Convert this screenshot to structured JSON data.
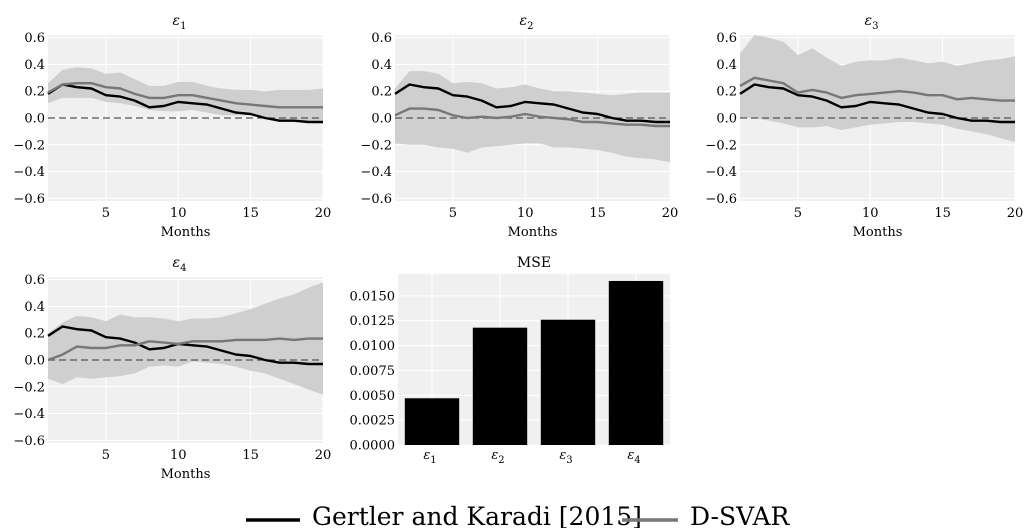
{
  "colors": {
    "plot_background": "#f0f0f0",
    "grid": "#ffffff",
    "band": "#cfcfcf",
    "gk_line": "#000000",
    "dsvar_line": "#777777",
    "zero_line": "#555555",
    "bar": "#000000"
  },
  "legend": {
    "gk_label": "Gertler and Karadi [2015]",
    "dsvar_label": "D-SVAR"
  },
  "chart_data": [
    {
      "type": "line",
      "title": "ε1",
      "title_base": "ε",
      "title_sub": "1",
      "xlabel": "Months",
      "xlim": [
        1,
        20
      ],
      "ylim": [
        -0.62,
        0.62
      ],
      "xticks": [
        5,
        10,
        15,
        20
      ],
      "yticks": [
        -0.6,
        -0.4,
        -0.2,
        0.0,
        0.2,
        0.4,
        0.6
      ],
      "ytick_labels": [
        "−0.6",
        "−0.4",
        "−0.2",
        "0.0",
        "0.2",
        "0.4",
        "0.6"
      ],
      "grid": true,
      "x": [
        1,
        2,
        3,
        4,
        5,
        6,
        7,
        8,
        9,
        10,
        11,
        12,
        13,
        14,
        15,
        16,
        17,
        18,
        19,
        20
      ],
      "band_upper": [
        0.26,
        0.36,
        0.38,
        0.37,
        0.33,
        0.34,
        0.29,
        0.24,
        0.24,
        0.27,
        0.27,
        0.24,
        0.22,
        0.21,
        0.21,
        0.2,
        0.21,
        0.21,
        0.21,
        0.22
      ],
      "band_lower": [
        0.11,
        0.15,
        0.15,
        0.15,
        0.12,
        0.11,
        0.09,
        0.06,
        0.05,
        0.05,
        0.06,
        0.04,
        0.02,
        0.02,
        0.02,
        0.0,
        -0.02,
        -0.03,
        -0.02,
        -0.02
      ],
      "series": [
        {
          "name": "Gertler and Karadi [2015]",
          "values": [
            0.18,
            0.25,
            0.23,
            0.22,
            0.17,
            0.16,
            0.13,
            0.08,
            0.09,
            0.12,
            0.11,
            0.1,
            0.07,
            0.04,
            0.03,
            0.0,
            -0.02,
            -0.02,
            -0.03,
            -0.03
          ]
        },
        {
          "name": "D-SVAR",
          "values": [
            0.19,
            0.25,
            0.26,
            0.26,
            0.23,
            0.22,
            0.18,
            0.15,
            0.15,
            0.17,
            0.17,
            0.15,
            0.13,
            0.11,
            0.1,
            0.09,
            0.08,
            0.08,
            0.08,
            0.08
          ]
        }
      ]
    },
    {
      "type": "line",
      "title": "ε2",
      "title_base": "ε",
      "title_sub": "2",
      "xlabel": "Months",
      "xlim": [
        1,
        20
      ],
      "ylim": [
        -0.62,
        0.62
      ],
      "xticks": [
        5,
        10,
        15,
        20
      ],
      "yticks": [
        -0.6,
        -0.4,
        -0.2,
        0.0,
        0.2,
        0.4,
        0.6
      ],
      "ytick_labels": [
        "−0.6",
        "−0.4",
        "−0.2",
        "0.0",
        "0.2",
        "0.4",
        "0.6"
      ],
      "grid": true,
      "x": [
        1,
        2,
        3,
        4,
        5,
        6,
        7,
        8,
        9,
        10,
        11,
        12,
        13,
        14,
        15,
        16,
        17,
        18,
        19,
        20
      ],
      "band_upper": [
        0.22,
        0.35,
        0.35,
        0.33,
        0.26,
        0.27,
        0.26,
        0.22,
        0.23,
        0.25,
        0.22,
        0.2,
        0.2,
        0.19,
        0.18,
        0.17,
        0.18,
        0.19,
        0.19,
        0.19
      ],
      "band_lower": [
        -0.19,
        -0.2,
        -0.2,
        -0.22,
        -0.23,
        -0.26,
        -0.22,
        -0.21,
        -0.2,
        -0.19,
        -0.19,
        -0.22,
        -0.22,
        -0.23,
        -0.24,
        -0.26,
        -0.29,
        -0.3,
        -0.31,
        -0.33
      ],
      "series": [
        {
          "name": "Gertler and Karadi [2015]",
          "values": [
            0.18,
            0.25,
            0.23,
            0.22,
            0.17,
            0.16,
            0.13,
            0.08,
            0.09,
            0.12,
            0.11,
            0.1,
            0.07,
            0.04,
            0.03,
            0.0,
            -0.02,
            -0.02,
            -0.03,
            -0.03
          ]
        },
        {
          "name": "D-SVAR",
          "values": [
            0.02,
            0.07,
            0.07,
            0.06,
            0.02,
            0.0,
            0.01,
            0.0,
            0.01,
            0.03,
            0.01,
            0.0,
            -0.01,
            -0.03,
            -0.03,
            -0.04,
            -0.05,
            -0.05,
            -0.06,
            -0.06
          ]
        }
      ]
    },
    {
      "type": "line",
      "title": "ε3",
      "title_base": "ε",
      "title_sub": "3",
      "xlabel": "Months",
      "xlim": [
        1,
        20
      ],
      "ylim": [
        -0.62,
        0.62
      ],
      "xticks": [
        5,
        10,
        15,
        20
      ],
      "yticks": [
        -0.6,
        -0.4,
        -0.2,
        0.0,
        0.2,
        0.4,
        0.6
      ],
      "ytick_labels": [
        "−0.6",
        "−0.4",
        "−0.2",
        "0.0",
        "0.2",
        "0.4",
        "0.6"
      ],
      "grid": true,
      "x": [
        1,
        2,
        3,
        4,
        5,
        6,
        7,
        8,
        9,
        10,
        11,
        12,
        13,
        14,
        15,
        16,
        17,
        18,
        19,
        20
      ],
      "band_upper": [
        0.48,
        0.62,
        0.6,
        0.57,
        0.47,
        0.52,
        0.45,
        0.39,
        0.42,
        0.43,
        0.43,
        0.45,
        0.43,
        0.41,
        0.42,
        0.39,
        0.41,
        0.43,
        0.44,
        0.46
      ],
      "band_lower": [
        0.0,
        0.0,
        -0.02,
        -0.04,
        -0.07,
        -0.07,
        -0.06,
        -0.09,
        -0.07,
        -0.05,
        -0.04,
        -0.03,
        -0.03,
        -0.04,
        -0.05,
        -0.08,
        -0.1,
        -0.12,
        -0.15,
        -0.18
      ],
      "series": [
        {
          "name": "Gertler and Karadi [2015]",
          "values": [
            0.18,
            0.25,
            0.23,
            0.22,
            0.17,
            0.16,
            0.13,
            0.08,
            0.09,
            0.12,
            0.11,
            0.1,
            0.07,
            0.04,
            0.03,
            0.0,
            -0.02,
            -0.02,
            -0.03,
            -0.03
          ]
        },
        {
          "name": "D-SVAR",
          "values": [
            0.24,
            0.3,
            0.28,
            0.26,
            0.19,
            0.21,
            0.19,
            0.15,
            0.17,
            0.18,
            0.19,
            0.2,
            0.19,
            0.17,
            0.17,
            0.14,
            0.15,
            0.14,
            0.13,
            0.13
          ]
        }
      ]
    },
    {
      "type": "line",
      "title": "ε4",
      "title_base": "ε",
      "title_sub": "4",
      "xlabel": "Months",
      "xlim": [
        1,
        20
      ],
      "ylim": [
        -0.62,
        0.62
      ],
      "xticks": [
        5,
        10,
        15,
        20
      ],
      "yticks": [
        -0.6,
        -0.4,
        -0.2,
        0.0,
        0.2,
        0.4,
        0.6
      ],
      "ytick_labels": [
        "−0.6",
        "−0.4",
        "−0.2",
        "0.0",
        "0.2",
        "0.4",
        "0.6"
      ],
      "grid": true,
      "x": [
        1,
        2,
        3,
        4,
        5,
        6,
        7,
        8,
        9,
        10,
        11,
        12,
        13,
        14,
        15,
        16,
        17,
        18,
        19,
        20
      ],
      "band_upper": [
        0.2,
        0.28,
        0.33,
        0.32,
        0.29,
        0.34,
        0.32,
        0.32,
        0.31,
        0.29,
        0.31,
        0.31,
        0.32,
        0.35,
        0.38,
        0.42,
        0.46,
        0.49,
        0.54,
        0.58
      ],
      "band_lower": [
        -0.14,
        -0.18,
        -0.13,
        -0.14,
        -0.13,
        -0.12,
        -0.1,
        -0.05,
        -0.04,
        -0.05,
        -0.01,
        -0.02,
        -0.03,
        -0.05,
        -0.08,
        -0.1,
        -0.14,
        -0.18,
        -0.22,
        -0.26
      ],
      "series": [
        {
          "name": "Gertler and Karadi [2015]",
          "values": [
            0.18,
            0.25,
            0.23,
            0.22,
            0.17,
            0.16,
            0.13,
            0.08,
            0.09,
            0.12,
            0.11,
            0.1,
            0.07,
            0.04,
            0.03,
            0.0,
            -0.02,
            -0.02,
            -0.03,
            -0.03
          ]
        },
        {
          "name": "D-SVAR",
          "values": [
            0.0,
            0.04,
            0.1,
            0.09,
            0.09,
            0.11,
            0.11,
            0.14,
            0.13,
            0.12,
            0.14,
            0.14,
            0.14,
            0.15,
            0.15,
            0.15,
            0.16,
            0.15,
            0.16,
            0.16
          ]
        }
      ]
    },
    {
      "type": "bar",
      "title": "MSE",
      "categories": [
        {
          "base": "ε",
          "sub": "1"
        },
        {
          "base": "ε",
          "sub": "2"
        },
        {
          "base": "ε",
          "sub": "3"
        },
        {
          "base": "ε",
          "sub": "4"
        }
      ],
      "values": [
        0.0047,
        0.0118,
        0.0126,
        0.0165
      ],
      "ylim": [
        0,
        0.0172
      ],
      "yticks": [
        0.0,
        0.0025,
        0.005,
        0.0075,
        0.01,
        0.0125,
        0.015
      ],
      "ytick_labels": [
        "0.0000",
        "0.0025",
        "0.0050",
        "0.0075",
        "0.0100",
        "0.0125",
        "0.0150"
      ],
      "grid": true
    }
  ]
}
